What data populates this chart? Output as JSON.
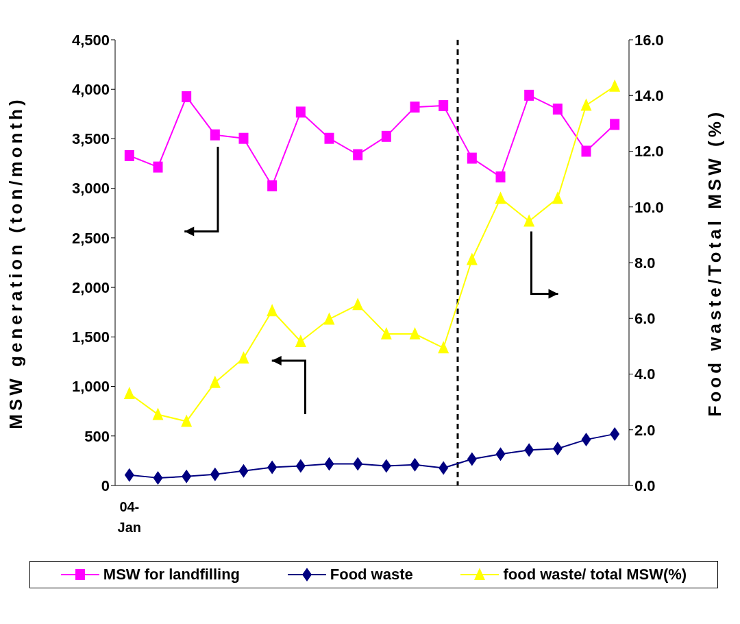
{
  "chart_data": {
    "type": "line",
    "ylabel": "MSW generation (ton/month)",
    "y2label": "Food waste/Total MSW (%)",
    "categories": [
      "04-Jan",
      null,
      null,
      null,
      null,
      null,
      null,
      null,
      null,
      null,
      null,
      null,
      null,
      null,
      null,
      null,
      null,
      null
    ],
    "series": [
      {
        "name": "MSW for landfilling",
        "color": "#ff00ff",
        "marker": "square",
        "values": [
          3330,
          3215,
          3925,
          3540,
          3505,
          3025,
          3770,
          3505,
          3340,
          3525,
          3820,
          3835,
          3305,
          3115,
          3940,
          3800,
          3375,
          3645
        ]
      },
      {
        "name": "Food waste",
        "color": "#000080",
        "marker": "diamond",
        "values": [
          105,
          77,
          91,
          112,
          147,
          183,
          197,
          218,
          218,
          197,
          210,
          176,
          267,
          316,
          358,
          372,
          463,
          520
        ]
      },
      {
        "name": "food waste/ total MSW(%)",
        "color": "#ffff00",
        "marker": "triangle",
        "axis": "y2",
        "values": [
          3.3,
          2.55,
          2.3,
          3.7,
          4.57,
          6.27,
          5.17,
          5.97,
          6.49,
          5.44,
          5.44,
          4.94,
          8.11,
          10.31,
          9.49,
          10.31,
          13.65,
          14.33
        ]
      }
    ],
    "ylim": [
      0,
      4500
    ],
    "yticks": [
      0,
      500,
      {
        "value": 1000,
        "label": "1,000"
      },
      {
        "value": 1500,
        "label": "1,500"
      },
      {
        "value": 2000,
        "label": "2,000"
      },
      {
        "value": 2500,
        "label": "2,500"
      },
      {
        "value": 3000,
        "label": "3,000"
      },
      {
        "value": 3500,
        "label": "3,500"
      },
      {
        "value": 4000,
        "label": "4,000"
      },
      {
        "value": 4500,
        "label": "4,500"
      }
    ],
    "y2lim": [
      0,
      16
    ],
    "y2ticks": [
      {
        "value": 0,
        "label": "0.0"
      },
      {
        "value": 2,
        "label": "2.0"
      },
      {
        "value": 4,
        "label": "4.0"
      },
      {
        "value": 6,
        "label": "6.0"
      },
      {
        "value": 8,
        "label": "8.0"
      },
      {
        "value": 10,
        "label": "10.0"
      },
      {
        "value": 12,
        "label": "12.0"
      },
      {
        "value": 14,
        "label": "14.0"
      },
      {
        "value": 16,
        "label": "16.0"
      }
    ],
    "grid": false,
    "legend": "bottom"
  }
}
